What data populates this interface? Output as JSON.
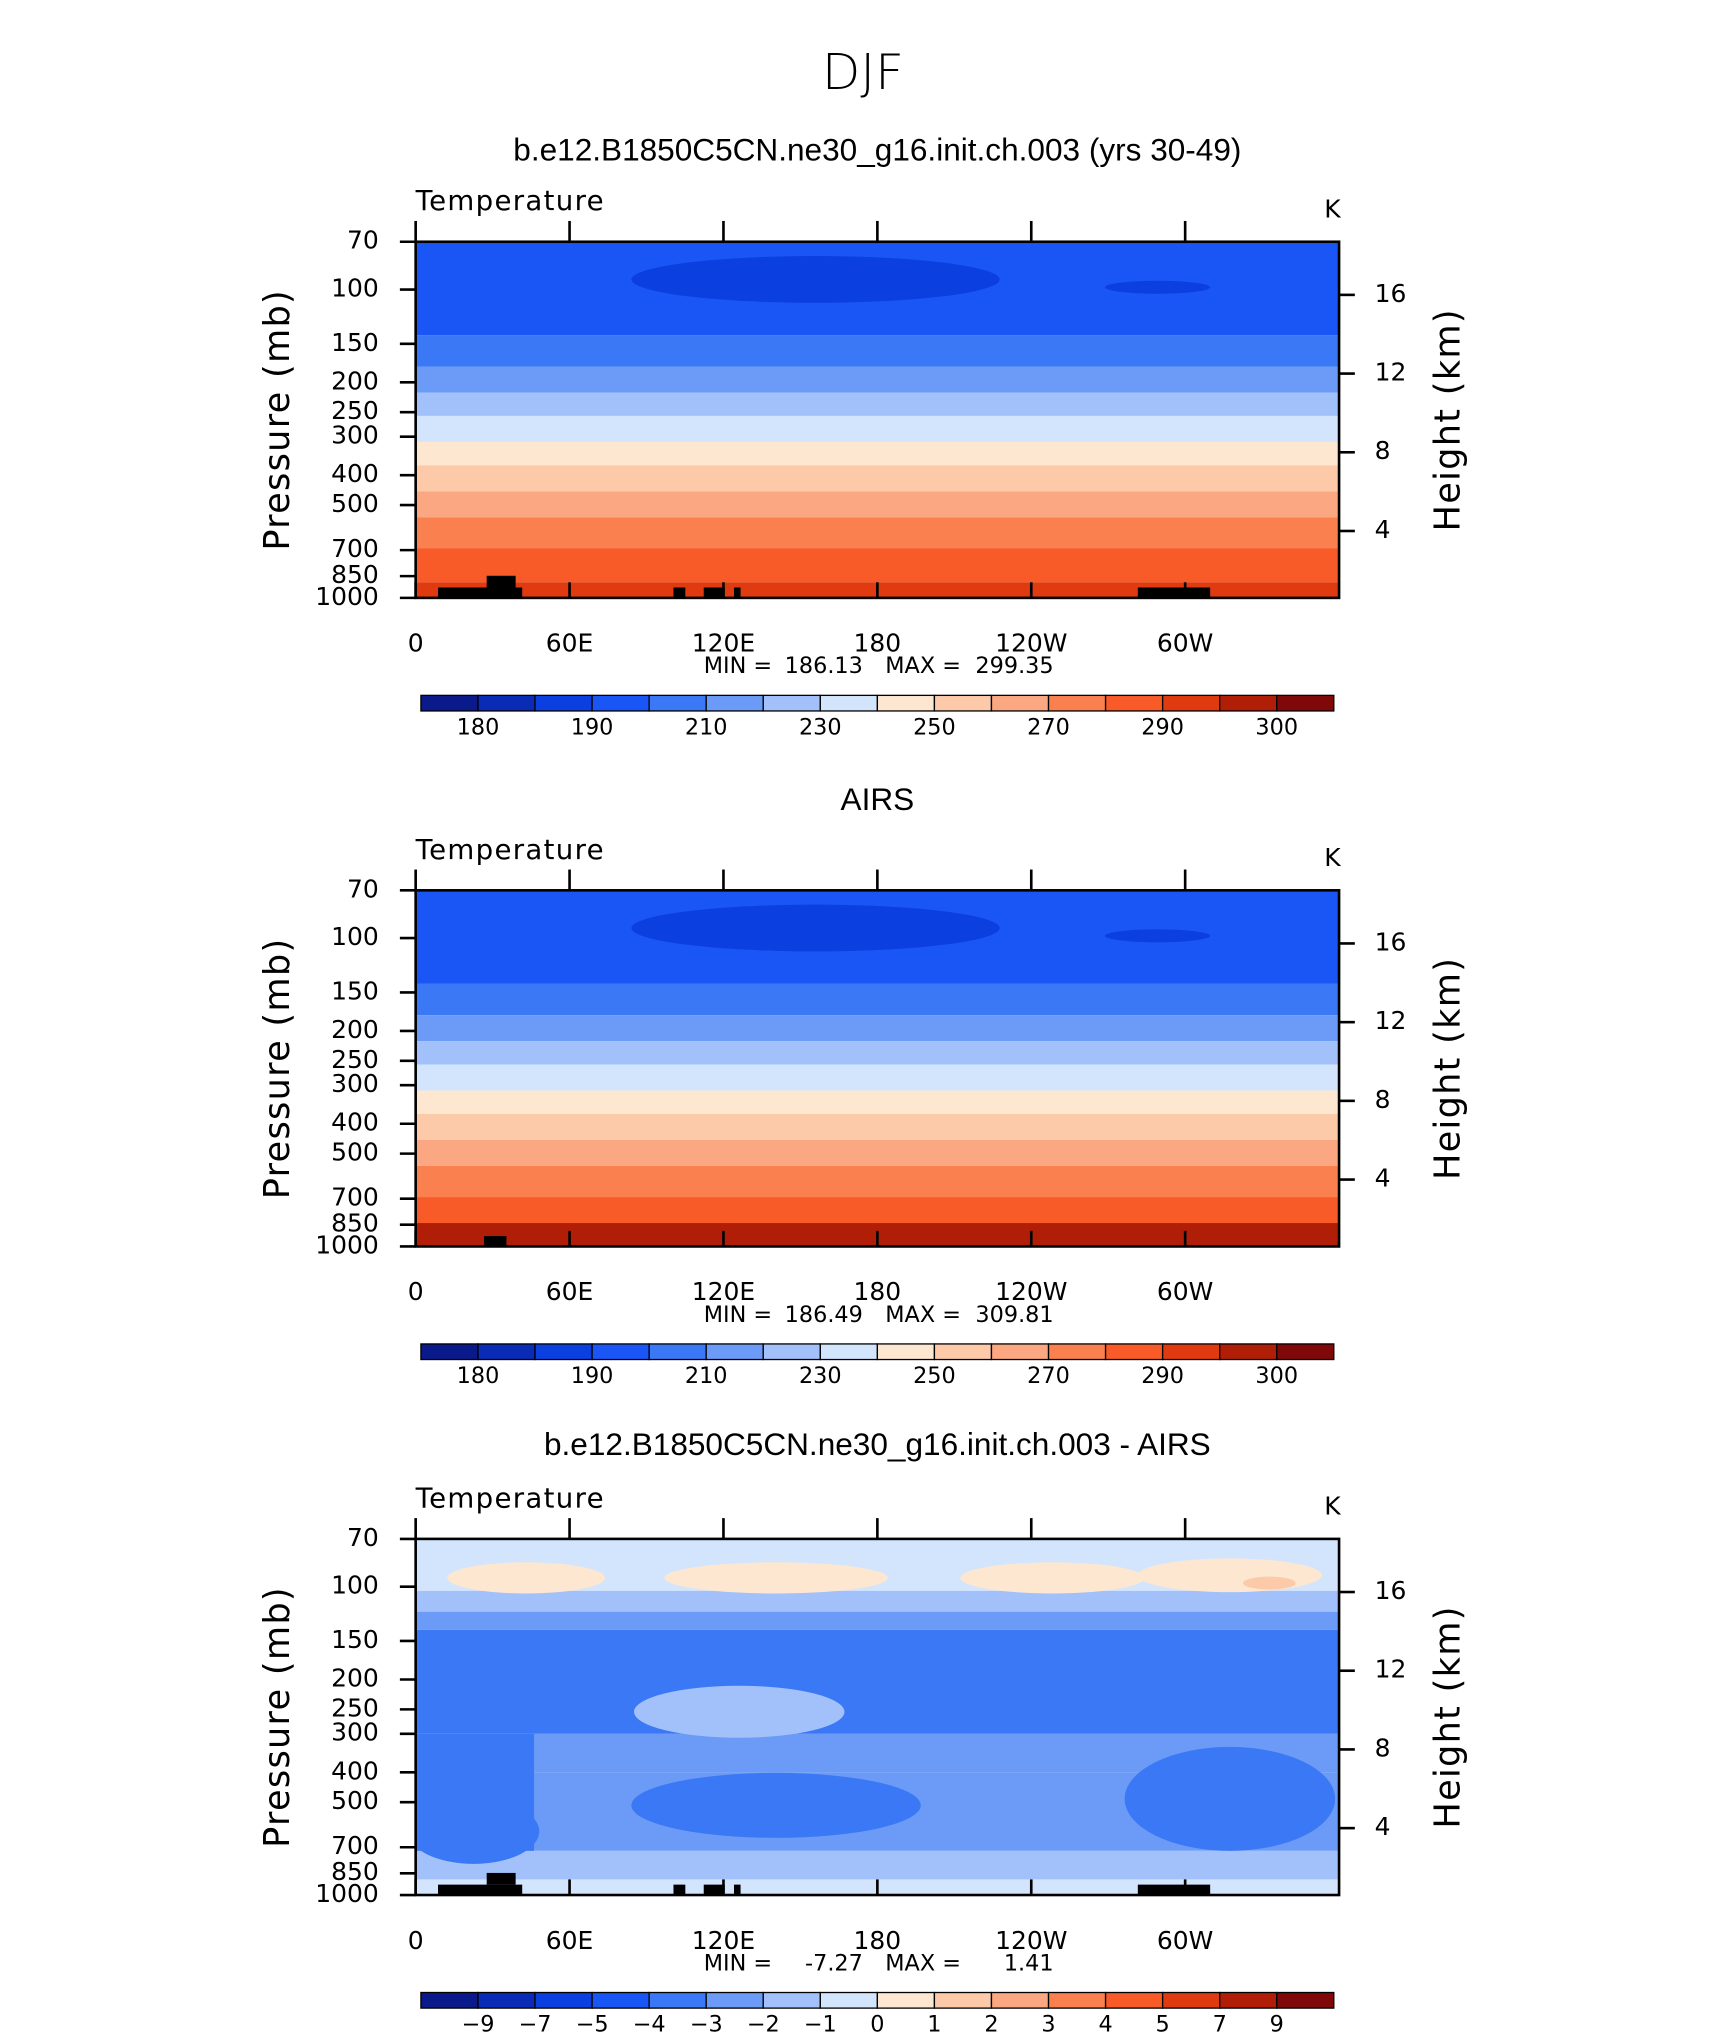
{
  "title": "DJF",
  "chart_data": [
    {
      "type": "contour",
      "title": "b.e12.B1850C5CN.ne30_g16.init.ch.003 (yrs 30-49)",
      "left_title": "Temperature",
      "units": "K",
      "ylabel": "Pressure (mb)",
      "y2label": "Height (km)",
      "xlim": [
        0,
        360
      ],
      "xticks": [
        0,
        {
          "value": 60,
          "label": "60E"
        },
        {
          "value": 120,
          "label": "120E"
        },
        180,
        {
          "value": 240,
          "label": "120W"
        },
        {
          "value": 300,
          "label": "60W"
        }
      ],
      "ylim": [
        1000,
        70
      ],
      "ylog": true,
      "yticks": [
        70,
        100,
        150,
        200,
        250,
        300,
        400,
        500,
        700,
        850,
        1000
      ],
      "y2lim": [
        0.6,
        18.7
      ],
      "y2ticks": [
        4,
        8,
        12,
        16
      ],
      "min_label": "MIN =",
      "min": 186.13,
      "max_label": "MAX =",
      "max": 299.35,
      "colorbar": {
        "colors": [
          "#0b1a8a",
          "#0a2bb5",
          "#0b3fe0",
          "#1a56f6",
          "#3b78f5",
          "#6b9bf6",
          "#a2c1fa",
          "#d2e5fd",
          "#fde7d0",
          "#fcc9a9",
          "#fba882",
          "#fa8050",
          "#f85a28",
          "#e03a10",
          "#b11e08",
          "#800808"
        ],
        "levels": [
          180,
          190,
          210,
          230,
          250,
          270,
          290,
          300
        ]
      }
    },
    {
      "type": "contour",
      "title": "AIRS",
      "left_title": "Temperature",
      "units": "K",
      "ylabel": "Pressure (mb)",
      "y2label": "Height (km)",
      "xlim": [
        0,
        360
      ],
      "xticks": [
        0,
        {
          "value": 60,
          "label": "60E"
        },
        {
          "value": 120,
          "label": "120E"
        },
        180,
        {
          "value": 240,
          "label": "120W"
        },
        {
          "value": 300,
          "label": "60W"
        }
      ],
      "ylim": [
        1000,
        70
      ],
      "ylog": true,
      "yticks": [
        70,
        100,
        150,
        200,
        250,
        300,
        400,
        500,
        700,
        850,
        1000
      ],
      "y2lim": [
        0.6,
        18.7
      ],
      "y2ticks": [
        4,
        8,
        12,
        16
      ],
      "min_label": "MIN =",
      "min": 186.49,
      "max_label": "MAX =",
      "max": 309.81,
      "colorbar": {
        "colors": [
          "#0b1a8a",
          "#0a2bb5",
          "#0b3fe0",
          "#1a56f6",
          "#3b78f5",
          "#6b9bf6",
          "#a2c1fa",
          "#d2e5fd",
          "#fde7d0",
          "#fcc9a9",
          "#fba882",
          "#fa8050",
          "#f85a28",
          "#e03a10",
          "#b11e08",
          "#800808"
        ],
        "levels": [
          180,
          190,
          210,
          230,
          250,
          270,
          290,
          300
        ]
      }
    },
    {
      "type": "contour",
      "title": "b.e12.B1850C5CN.ne30_g16.init.ch.003 - AIRS",
      "left_title": "Temperature",
      "units": "K",
      "ylabel": "Pressure (mb)",
      "y2label": "Height (km)",
      "xlim": [
        0,
        360
      ],
      "xticks": [
        0,
        {
          "value": 60,
          "label": "60E"
        },
        {
          "value": 120,
          "label": "120E"
        },
        180,
        {
          "value": 240,
          "label": "120W"
        },
        {
          "value": 300,
          "label": "60W"
        }
      ],
      "ylim": [
        1000,
        70
      ],
      "ylog": true,
      "yticks": [
        70,
        100,
        150,
        200,
        250,
        300,
        400,
        500,
        700,
        850,
        1000
      ],
      "y2lim": [
        0.6,
        18.7
      ],
      "y2ticks": [
        4,
        8,
        12,
        16
      ],
      "min_label": "MIN =",
      "min": -7.27,
      "max_label": "MAX =",
      "max": 1.41,
      "colorbar": {
        "colors": [
          "#0b1a8a",
          "#0a2bb5",
          "#0b3fe0",
          "#1a56f6",
          "#3b78f5",
          "#6b9bf6",
          "#a2c1fa",
          "#d2e5fd",
          "#fde7d0",
          "#fcc9a9",
          "#fba882",
          "#fa8050",
          "#f85a28",
          "#e03a10",
          "#b11e08",
          "#800808"
        ],
        "levels": [
          {
            "value": -9,
            "label": "−9"
          },
          {
            "value": -7,
            "label": "−7"
          },
          {
            "value": -5,
            "label": "−5"
          },
          {
            "value": -4,
            "label": "−4"
          },
          {
            "value": -3,
            "label": "−3"
          },
          {
            "value": -2,
            "label": "−2"
          },
          {
            "value": -1,
            "label": "−1"
          },
          0,
          1,
          2,
          3,
          4,
          5,
          7,
          9
        ]
      }
    }
  ]
}
